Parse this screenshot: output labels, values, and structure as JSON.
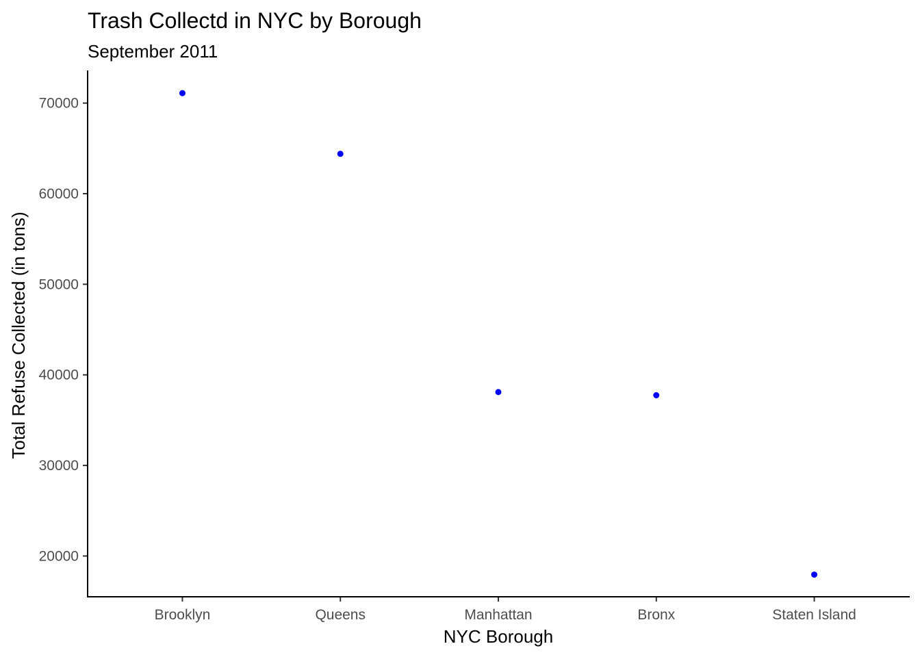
{
  "chart_data": {
    "type": "scatter",
    "title": "Trash Collectd in NYC by Borough",
    "subtitle": "September 2011",
    "xlabel": "NYC Borough",
    "ylabel": "Total Refuse Collected (in tons)",
    "categories": [
      "Brooklyn",
      "Queens",
      "Manhattan",
      "Bronx",
      "Staten Island"
    ],
    "values": [
      71100,
      64400,
      38100,
      37750,
      17950
    ],
    "ylim": [
      15500,
      73600
    ],
    "yticks": [
      20000,
      30000,
      40000,
      50000,
      60000,
      70000
    ],
    "point_color": "#0000ff",
    "grid": false,
    "legend": "none"
  }
}
